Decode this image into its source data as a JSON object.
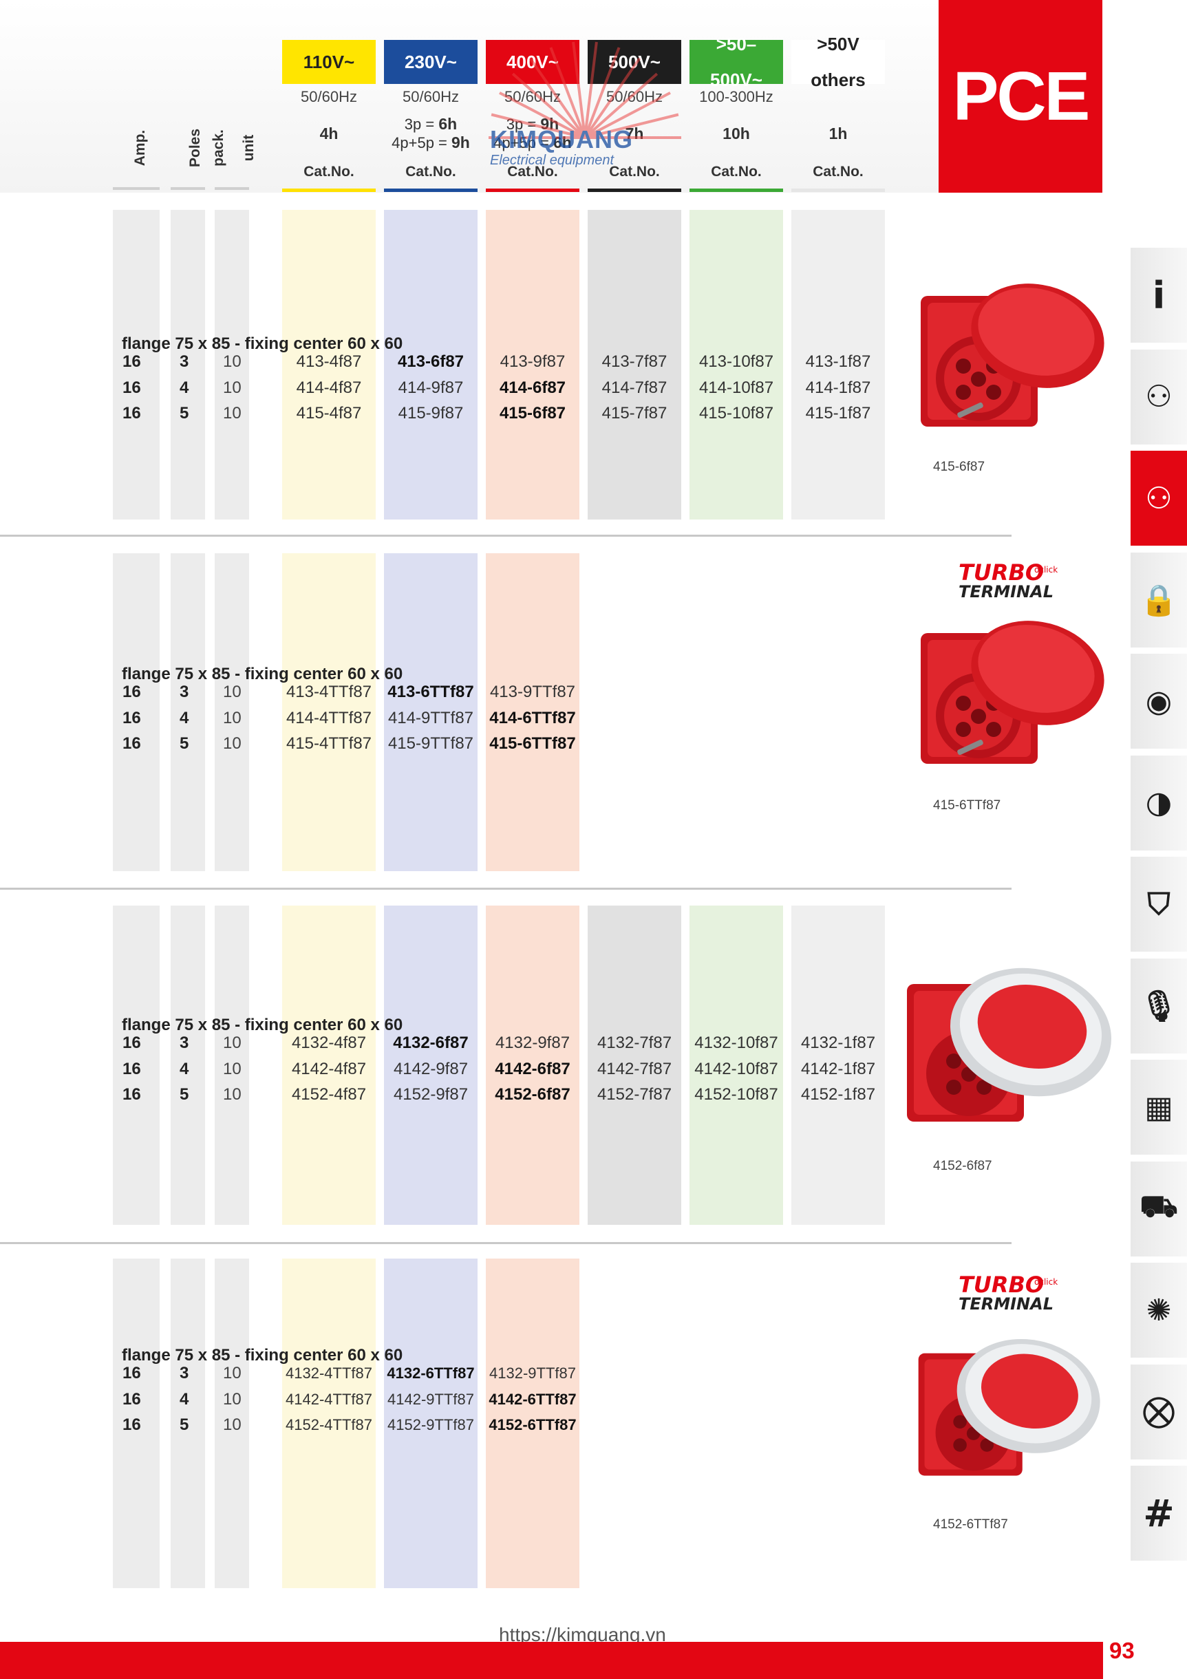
{
  "brand": "PCE",
  "row_headers": [
    "Amp.",
    "Poles",
    "pack. unit"
  ],
  "columns": [
    {
      "voltage": "110V~",
      "freq": "50/60Hz",
      "dur": "4h",
      "cat": "Cat.No.",
      "color": "#ffe500",
      "text": "#222222",
      "stripe": "#fdf8dc",
      "line": "#ffe100"
    },
    {
      "voltage": "230V~",
      "freq": "50/60Hz",
      "dur": "3p = 6h|4p+5p = 9h",
      "cat": "Cat.No.",
      "color": "#1c4d9c",
      "text": "#ffffff",
      "stripe": "#dcdff2",
      "line": "#1c4d9c"
    },
    {
      "voltage": "400V~",
      "freq": "50/60Hz",
      "dur": "3p = 9h|4p+5p = 6h",
      "cat": "Cat.No.",
      "color": "#e30613",
      "text": "#ffffff",
      "stripe": "#fbe0d3",
      "line": "#e30613"
    },
    {
      "voltage": "500V~",
      "freq": "50/60Hz",
      "dur": "7h",
      "cat": "Cat.No.",
      "color": "#1e1e1e",
      "text": "#ffffff",
      "stripe": "#e1e1e1",
      "line": "#1e1e1e"
    },
    {
      "voltage": ">50–500V~",
      "freq": "100-300Hz",
      "dur": "10h",
      "cat": "Cat.No.",
      "color": "#3ba935",
      "text": "#ffffff",
      "stripe": "#e6f2de",
      "line": "#3ba935"
    },
    {
      "voltage": ">50V others",
      "freq": "",
      "dur": "1h",
      "cat": "Cat.No.",
      "color": "#ffffff",
      "text": "#222222",
      "stripe": "#efefef",
      "line": "#e6e6e6"
    }
  ],
  "sections": [
    {
      "title": "flange 75 x 85 - fixing center 60 x 60",
      "product_label": "415-6f87",
      "turbo": false,
      "rows": [
        {
          "amp": "16",
          "poles": "3",
          "pack": "10",
          "cells": [
            "413-4f87",
            "413-6f87",
            "413-9f87",
            "413-7f87",
            "413-10f87",
            "413-1f87"
          ],
          "bold": 1
        },
        {
          "amp": "16",
          "poles": "4",
          "pack": "10",
          "cells": [
            "414-4f87",
            "414-9f87",
            "414-6f87",
            "414-7f87",
            "414-10f87",
            "414-1f87"
          ],
          "bold": 2
        },
        {
          "amp": "16",
          "poles": "5",
          "pack": "10",
          "cells": [
            "415-4f87",
            "415-9f87",
            "415-6f87",
            "415-7f87",
            "415-10f87",
            "415-1f87"
          ],
          "bold": 2
        }
      ]
    },
    {
      "title": "flange 75 x 85 - fixing center 60 x 60",
      "product_label": "415-6TTf87",
      "turbo": true,
      "rows": [
        {
          "amp": "16",
          "poles": "3",
          "pack": "10",
          "cells": [
            "413-4TTf87",
            "413-6TTf87",
            "413-9TTf87"
          ],
          "bold": 1
        },
        {
          "amp": "16",
          "poles": "4",
          "pack": "10",
          "cells": [
            "414-4TTf87",
            "414-9TTf87",
            "414-6TTf87"
          ],
          "bold": 2
        },
        {
          "amp": "16",
          "poles": "5",
          "pack": "10",
          "cells": [
            "415-4TTf87",
            "415-9TTf87",
            "415-6TTf87"
          ],
          "bold": 2
        }
      ]
    },
    {
      "title": "flange 75 x 85 - fixing center 60 x 60",
      "product_label": "4152-6f87",
      "turbo": false,
      "rows": [
        {
          "amp": "16",
          "poles": "3",
          "pack": "10",
          "cells": [
            "4132-4f87",
            "4132-6f87",
            "4132-9f87",
            "4132-7f87",
            "4132-10f87",
            "4132-1f87"
          ],
          "bold": 1
        },
        {
          "amp": "16",
          "poles": "4",
          "pack": "10",
          "cells": [
            "4142-4f87",
            "4142-9f87",
            "4142-6f87",
            "4142-7f87",
            "4142-10f87",
            "4142-1f87"
          ],
          "bold": 2
        },
        {
          "amp": "16",
          "poles": "5",
          "pack": "10",
          "cells": [
            "4152-4f87",
            "4152-9f87",
            "4152-6f87",
            "4152-7f87",
            "4152-10f87",
            "4152-1f87"
          ],
          "bold": 2
        }
      ]
    },
    {
      "title": "flange 75 x 85 - fixing center 60 x 60",
      "product_label": "4152-6TTf87",
      "turbo": true,
      "rows": [
        {
          "amp": "16",
          "poles": "3",
          "pack": "10",
          "cells": [
            "4132-4TTf87",
            "4132-6TTf87",
            "4132-9TTf87"
          ],
          "bold": 1
        },
        {
          "amp": "16",
          "poles": "4",
          "pack": "10",
          "cells": [
            "4142-4TTf87",
            "4142-9TTf87",
            "4142-6TTf87"
          ],
          "bold": 2
        },
        {
          "amp": "16",
          "poles": "5",
          "pack": "10",
          "cells": [
            "4152-4TTf87",
            "4152-9TTf87",
            "4152-6TTf87"
          ],
          "bold": 2
        }
      ]
    }
  ],
  "turbo_logo": {
    "line1": "TURBO",
    "line2": "TERMINAL",
    "small": "oclick"
  },
  "watermark": {
    "name": "KIMQUANG",
    "sub": "Electrical equipment"
  },
  "tabs": [
    {
      "icon": "info-icon",
      "glyph": "i"
    },
    {
      "icon": "socket-round-icon",
      "glyph": "⚇"
    },
    {
      "icon": "socket-panel-icon",
      "glyph": "⚇",
      "active": true
    },
    {
      "icon": "lock-socket-icon",
      "glyph": "🔒"
    },
    {
      "icon": "schuko-icon",
      "glyph": "◉"
    },
    {
      "icon": "plug-round-icon",
      "glyph": "◑"
    },
    {
      "icon": "shield-plug-icon",
      "glyph": "⛉"
    },
    {
      "icon": "microphone-icon",
      "glyph": "🎙"
    },
    {
      "icon": "distribution-box-icon",
      "glyph": "▦"
    },
    {
      "icon": "vehicle-icon",
      "glyph": "⛟"
    },
    {
      "icon": "lamp-icon",
      "glyph": "✺"
    },
    {
      "icon": "cable-reel-icon",
      "glyph": "⛒"
    },
    {
      "icon": "hash-icon",
      "glyph": "#"
    }
  ],
  "footer": {
    "url": "https://kimquang.vn",
    "page": "93"
  }
}
